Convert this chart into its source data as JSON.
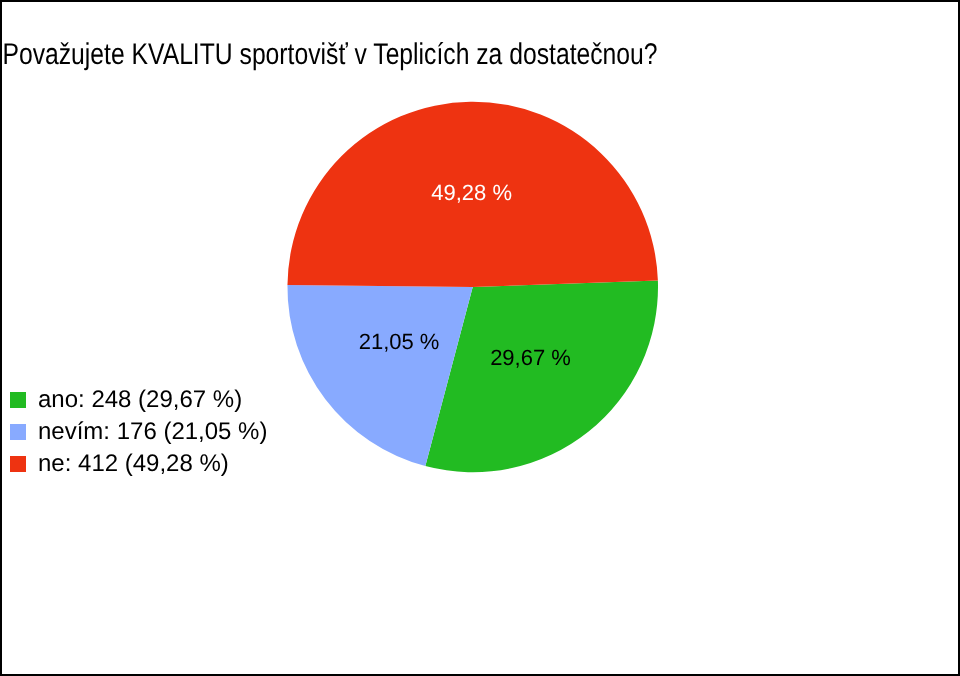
{
  "chart_data": {
    "type": "pie",
    "title": "Považujete KVALITU sportovišť v Teplicích za dostatečnou?",
    "categories": [
      "ano: 248 (29,67 %)",
      "nevím: 176 (21,05 %)",
      "ne: 412 (49,28 %)"
    ],
    "values": [
      29.67,
      21.05,
      49.28
    ],
    "value_labels": [
      "29,67 %",
      "21,05 %",
      "49,28 %"
    ],
    "colors": [
      "#22bb22",
      "#88aaff",
      "#ee3311"
    ],
    "legend": "bottom left"
  }
}
